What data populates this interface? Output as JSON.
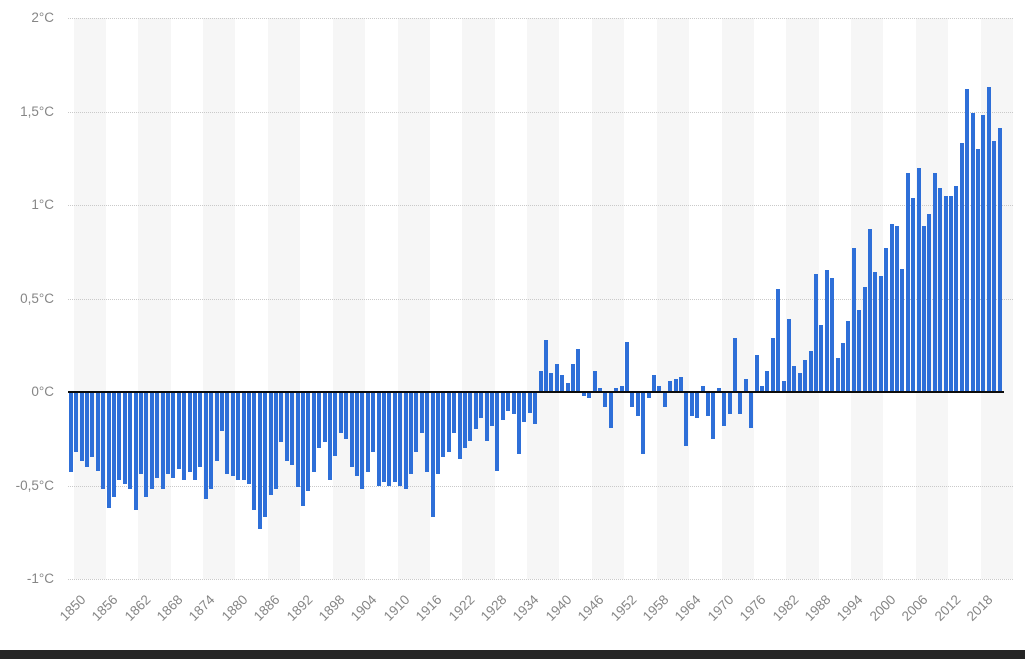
{
  "chart_data": {
    "type": "bar",
    "unit": "°C",
    "x_start": 1850,
    "x_end": 2022,
    "values": [
      -0.43,
      -0.32,
      -0.37,
      -0.4,
      -0.35,
      -0.42,
      -0.52,
      -0.62,
      -0.56,
      -0.47,
      -0.49,
      -0.52,
      -0.63,
      -0.44,
      -0.56,
      -0.52,
      -0.46,
      -0.52,
      -0.44,
      -0.46,
      -0.41,
      -0.47,
      -0.43,
      -0.47,
      -0.4,
      -0.57,
      -0.52,
      -0.37,
      -0.21,
      -0.44,
      -0.45,
      -0.47,
      -0.47,
      -0.49,
      -0.63,
      -0.73,
      -0.67,
      -0.55,
      -0.52,
      -0.27,
      -0.37,
      -0.39,
      -0.51,
      -0.61,
      -0.53,
      -0.43,
      -0.3,
      -0.27,
      -0.47,
      -0.34,
      -0.22,
      -0.25,
      -0.4,
      -0.45,
      -0.52,
      -0.43,
      -0.32,
      -0.5,
      -0.48,
      -0.5,
      -0.48,
      -0.5,
      -0.52,
      -0.44,
      -0.32,
      -0.22,
      -0.43,
      -0.67,
      -0.44,
      -0.35,
      -0.32,
      -0.22,
      -0.36,
      -0.3,
      -0.26,
      -0.2,
      -0.14,
      -0.26,
      -0.18,
      -0.42,
      -0.15,
      -0.1,
      -0.12,
      -0.33,
      -0.16,
      -0.11,
      -0.17,
      0.11,
      0.28,
      0.1,
      0.15,
      0.09,
      0.05,
      0.15,
      0.23,
      -0.02,
      -0.03,
      0.11,
      0.02,
      -0.08,
      -0.19,
      0.02,
      0.03,
      0.27,
      -0.08,
      -0.13,
      -0.33,
      -0.03,
      0.09,
      0.03,
      -0.08,
      0.06,
      0.07,
      0.08,
      -0.29,
      -0.13,
      -0.14,
      0.03,
      -0.13,
      -0.25,
      0.02,
      -0.18,
      -0.12,
      0.29,
      -0.12,
      0.07,
      -0.19,
      0.2,
      0.03,
      0.11,
      0.29,
      0.55,
      0.06,
      0.39,
      0.14,
      0.1,
      0.17,
      0.22,
      0.63,
      0.36,
      0.65,
      0.61,
      0.18,
      0.26,
      0.38,
      0.77,
      0.44,
      0.56,
      0.87,
      0.64,
      0.62,
      0.77,
      0.9,
      0.89,
      0.66,
      1.17,
      1.04,
      1.2,
      0.89,
      0.95,
      1.17,
      1.09,
      1.05,
      1.05,
      1.1,
      1.33,
      1.62,
      1.49,
      1.3,
      1.48,
      1.63,
      1.34,
      1.41
    ],
    "x_tick_labels": [
      "1850",
      "1856",
      "1862",
      "1868",
      "1874",
      "1880",
      "1886",
      "1892",
      "1898",
      "1904",
      "1910",
      "1916",
      "1922",
      "1928",
      "1934",
      "1940",
      "1946",
      "1952",
      "1958",
      "1964",
      "1970",
      "1976",
      "1982",
      "1988",
      "1994",
      "2000",
      "2006",
      "2012",
      "2018"
    ],
    "y_tick_labels": [
      "2°C",
      "1,5°C",
      "1°C",
      "0,5°C",
      "0°C",
      "-0,5°C",
      "-1°C"
    ],
    "y_tick_values": [
      2,
      1.5,
      1,
      0.5,
      0,
      -0.5,
      -1
    ],
    "ylim": [
      -1,
      2
    ],
    "grid": "horizontal-dotted",
    "legend": "none",
    "bar_color": "#2e6fd8"
  },
  "colors": {
    "bar": "#2e6fd8",
    "stripe": "#f6f6f6",
    "gridline": "#c9c9c9",
    "zero_line": "#0d0d0d",
    "tick_label": "#868686",
    "bottom_edge": "#252525"
  }
}
